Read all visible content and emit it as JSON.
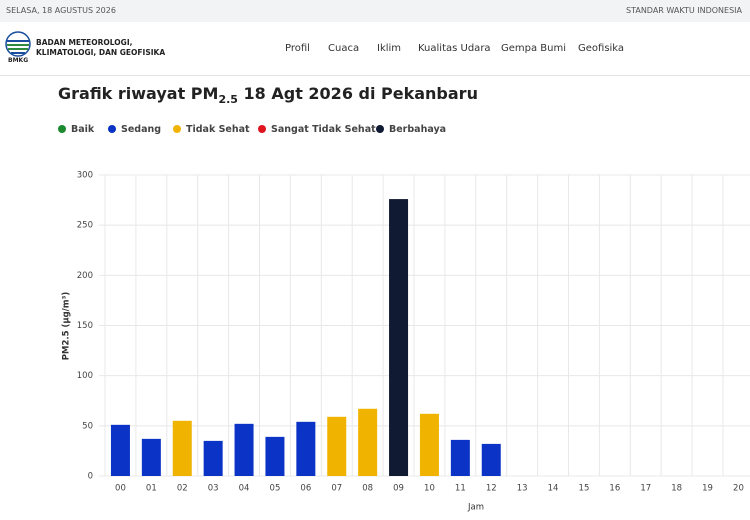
{
  "topbar": {
    "date": "SELASA, 18 AGUSTUS 2026",
    "timezone": "STANDAR WAKTU INDONESIA"
  },
  "header": {
    "logo_text": "BMKG",
    "org_name": "BADAN METEOROLOGI, KLIMATOLOGI, DAN GEOFISIKA",
    "nav": [
      "Profil",
      "Cuaca",
      "Iklim",
      "Kualitas Udara",
      "Gempa Bumi",
      "Geofisika"
    ]
  },
  "chart_data": {
    "type": "bar",
    "title_parts": [
      "Grafik riwayat PM",
      "2.5",
      " 18 Agt 2026 di Pekanbaru"
    ],
    "legend": [
      {
        "name": "Baik",
        "color": "#1b8a2f"
      },
      {
        "name": "Sedang",
        "color": "#0b33c6"
      },
      {
        "name": "Tidak Sehat",
        "color": "#f0b400"
      },
      {
        "name": "Sangat Tidak Sehat",
        "color": "#e0141e"
      },
      {
        "name": "Berbahaya",
        "color": "#111a33"
      }
    ],
    "y_label": "PM2.5 (µg/m³)",
    "x_label": "Jam",
    "categories": [
      "00",
      "01",
      "02",
      "03",
      "04",
      "05",
      "06",
      "07",
      "08",
      "09",
      "10",
      "11",
      "12",
      "13",
      "14",
      "15",
      "16",
      "17",
      "18",
      "19",
      "20"
    ],
    "values": [
      51,
      37,
      55,
      35,
      52,
      39,
      54,
      59,
      67,
      276,
      62,
      36,
      32,
      null,
      null,
      null,
      null,
      null,
      null,
      null,
      null
    ],
    "bar_colors": [
      "#0b33c6",
      "#0b33c6",
      "#f0b400",
      "#0b33c6",
      "#0b33c6",
      "#0b33c6",
      "#0b33c6",
      "#f0b400",
      "#f0b400",
      "#111a33",
      "#f0b400",
      "#0b33c6",
      "#0b33c6",
      null,
      null,
      null,
      null,
      null,
      null,
      null,
      null
    ],
    "ylim": [
      0,
      300
    ],
    "yticks": [
      0,
      50,
      100,
      150,
      200,
      250,
      300
    ],
    "grid": true
  }
}
